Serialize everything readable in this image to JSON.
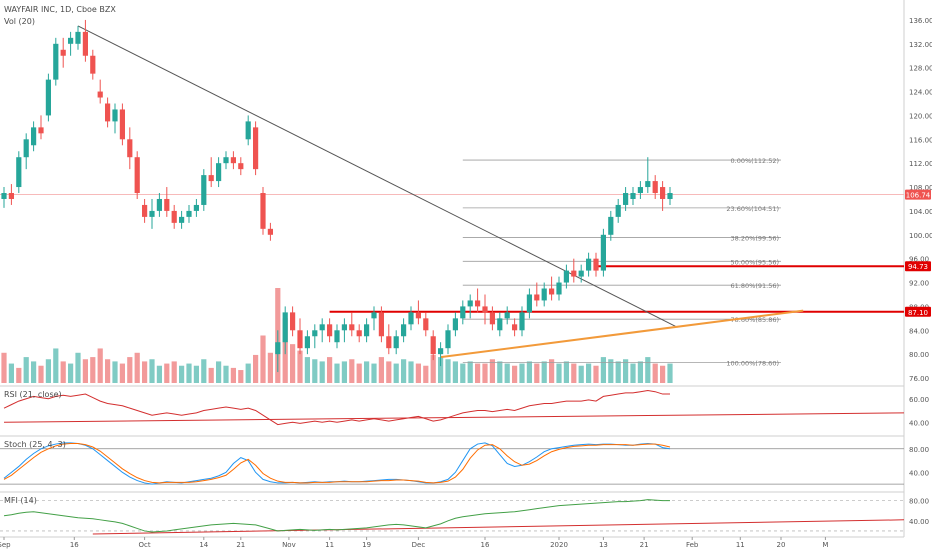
{
  "header": {
    "title": "WAYFAIR INC, 1D, Cboe BZX",
    "volume_label": "Vol (20)"
  },
  "colors": {
    "up": "#26a69a",
    "down": "#ef5350",
    "vol_up": "#80cbc4",
    "vol_down": "#f29a9a",
    "trendline": "#555555",
    "support_line": "#f29a3a",
    "level_line": "#e00000",
    "rsi": "#d32f2f",
    "stoch_k": "#2196f3",
    "stoch_d": "#ff6d00",
    "mfi": "#43a047",
    "fib": "#9e9e9e",
    "price_line": "#f6b0b0"
  },
  "chart_data": {
    "type": "candlestick",
    "title": "WAYFAIR INC, 1D, Cboe BZX",
    "price_axis": {
      "ylim": [
        75,
        138
      ],
      "ticks": [
        "76.00",
        "80.00",
        "84.00",
        "88.00",
        "92.00",
        "96.00",
        "100.00",
        "104.00",
        "108.00",
        "112.00",
        "116.00",
        "120.00",
        "124.00",
        "128.00",
        "132.00",
        "136.00"
      ]
    },
    "x_ticks": [
      {
        "label": "Sep",
        "idx": 0
      },
      {
        "label": "16",
        "idx": 9.5
      },
      {
        "label": "Oct",
        "idx": 19
      },
      {
        "label": "14",
        "idx": 27
      },
      {
        "label": "21",
        "idx": 32
      },
      {
        "label": "Nov",
        "idx": 38.5
      },
      {
        "label": "11",
        "idx": 44
      },
      {
        "label": "19",
        "idx": 49
      },
      {
        "label": "Dec",
        "idx": 56
      },
      {
        "label": "16",
        "idx": 65
      },
      {
        "label": "2020",
        "idx": 75
      },
      {
        "label": "13",
        "idx": 81
      },
      {
        "label": "21",
        "idx": 86.5
      },
      {
        "label": "Feb",
        "idx": 93
      },
      {
        "label": "11",
        "idx": 99.5
      },
      {
        "label": "20",
        "idx": 105
      },
      {
        "label": "M",
        "idx": 111
      }
    ],
    "candles": [
      [
        106,
        108,
        104.5,
        107
      ],
      [
        107,
        108.5,
        105,
        106
      ],
      [
        108,
        114,
        107,
        113
      ],
      [
        113,
        117,
        111,
        116
      ],
      [
        115,
        119,
        114,
        118
      ],
      [
        118,
        120,
        116,
        117
      ],
      [
        120,
        127,
        119,
        126
      ],
      [
        126,
        133,
        125,
        132
      ],
      [
        131,
        133,
        128,
        130
      ],
      [
        132,
        134,
        130,
        133
      ],
      [
        132,
        135,
        131,
        134
      ],
      [
        134,
        136,
        129,
        130
      ],
      [
        130,
        131,
        126,
        127
      ],
      [
        124,
        126,
        122,
        123
      ],
      [
        122,
        123,
        118,
        119
      ],
      [
        119,
        122,
        117,
        121
      ],
      [
        121,
        122,
        115,
        116
      ],
      [
        116,
        118,
        111,
        113
      ],
      [
        113,
        114,
        106,
        107
      ],
      [
        105,
        106,
        102,
        103
      ],
      [
        103,
        106,
        101,
        104
      ],
      [
        104,
        107,
        103,
        106
      ],
      [
        106,
        108,
        103,
        104
      ],
      [
        104,
        105,
        101,
        102
      ],
      [
        102,
        104,
        101,
        103
      ],
      [
        103,
        105,
        102,
        104
      ],
      [
        104,
        106,
        103,
        105
      ],
      [
        105,
        111,
        104,
        110
      ],
      [
        110,
        113,
        108,
        109
      ],
      [
        109,
        113,
        108,
        112
      ],
      [
        112,
        114,
        111,
        113
      ],
      [
        113,
        114,
        111,
        112
      ],
      [
        112,
        113,
        110,
        111
      ],
      [
        116,
        120,
        115,
        119
      ],
      [
        118,
        119,
        110,
        111
      ],
      [
        107,
        108,
        100,
        101
      ],
      [
        101,
        102,
        99,
        100
      ],
      [
        80,
        84,
        77,
        82
      ],
      [
        82,
        88,
        80,
        87
      ],
      [
        87,
        88,
        83,
        84
      ],
      [
        84,
        86,
        80,
        81
      ],
      [
        81,
        84,
        80,
        83
      ],
      [
        83,
        85,
        81,
        84
      ],
      [
        84,
        86,
        82,
        85
      ],
      [
        85,
        86,
        82,
        83
      ],
      [
        82,
        85,
        81,
        84
      ],
      [
        84,
        86,
        82,
        85
      ],
      [
        85,
        87,
        83,
        84
      ],
      [
        84,
        85,
        82,
        83
      ],
      [
        83,
        86,
        82,
        85
      ],
      [
        86,
        88,
        84,
        87
      ],
      [
        87,
        88,
        82,
        83
      ],
      [
        83,
        85,
        80,
        81
      ],
      [
        81,
        84,
        80,
        83
      ],
      [
        83,
        86,
        82,
        85
      ],
      [
        85,
        88,
        84,
        87
      ],
      [
        87,
        89,
        85,
        86
      ],
      [
        86,
        87,
        83,
        84
      ],
      [
        83,
        84,
        79,
        80
      ],
      [
        80,
        82,
        78,
        81
      ],
      [
        81,
        85,
        80,
        84
      ],
      [
        84,
        87,
        83,
        86
      ],
      [
        86,
        89,
        85,
        88
      ],
      [
        88,
        90,
        86,
        89
      ],
      [
        89,
        91,
        87,
        88
      ],
      [
        88,
        90,
        85,
        87
      ],
      [
        87,
        88,
        84,
        85
      ],
      [
        84,
        87,
        83,
        86
      ],
      [
        86,
        88,
        85,
        87
      ],
      [
        85,
        86,
        83,
        84
      ],
      [
        84,
        88,
        83,
        87
      ],
      [
        87,
        91,
        86,
        90
      ],
      [
        90,
        92,
        88,
        89
      ],
      [
        89,
        92,
        88,
        91
      ],
      [
        91,
        93,
        89,
        90
      ],
      [
        90,
        93,
        89,
        92
      ],
      [
        92,
        95,
        91,
        94
      ],
      [
        94,
        96,
        92,
        93
      ],
      [
        93,
        95,
        92,
        94
      ],
      [
        94,
        97,
        93,
        96
      ],
      [
        96,
        97,
        93,
        94
      ],
      [
        94,
        101,
        93,
        100
      ],
      [
        100,
        104,
        99,
        103
      ],
      [
        103,
        106,
        102,
        105
      ],
      [
        105,
        108,
        104,
        107
      ],
      [
        106,
        108,
        105,
        107
      ],
      [
        107,
        109,
        106,
        108
      ],
      [
        108,
        113,
        107,
        109
      ],
      [
        109,
        110,
        106,
        107
      ],
      [
        108,
        109,
        104,
        106
      ],
      [
        106,
        108,
        105,
        107
      ]
    ],
    "volume": [
      [
        14,
        false
      ],
      [
        9,
        true
      ],
      [
        7,
        false
      ],
      [
        12,
        true
      ],
      [
        10,
        true
      ],
      [
        8,
        false
      ],
      [
        11,
        true
      ],
      [
        16,
        true
      ],
      [
        10,
        false
      ],
      [
        9,
        true
      ],
      [
        14,
        true
      ],
      [
        11,
        false
      ],
      [
        12,
        false
      ],
      [
        16,
        false
      ],
      [
        11,
        false
      ],
      [
        10,
        true
      ],
      [
        9,
        false
      ],
      [
        12,
        false
      ],
      [
        14,
        false
      ],
      [
        10,
        false
      ],
      [
        11,
        true
      ],
      [
        8,
        true
      ],
      [
        9,
        false
      ],
      [
        10,
        false
      ],
      [
        8,
        true
      ],
      [
        9,
        true
      ],
      [
        8,
        true
      ],
      [
        11,
        true
      ],
      [
        7,
        false
      ],
      [
        10,
        true
      ],
      [
        8,
        true
      ],
      [
        7,
        false
      ],
      [
        6,
        false
      ],
      [
        9,
        true
      ],
      [
        13,
        false
      ],
      [
        22,
        false
      ],
      [
        14,
        false
      ],
      [
        44,
        false
      ],
      [
        30,
        false
      ],
      [
        18,
        false
      ],
      [
        15,
        false
      ],
      [
        12,
        true
      ],
      [
        11,
        true
      ],
      [
        10,
        true
      ],
      [
        12,
        false
      ],
      [
        9,
        true
      ],
      [
        10,
        true
      ],
      [
        11,
        false
      ],
      [
        9,
        false
      ],
      [
        10,
        true
      ],
      [
        9,
        true
      ],
      [
        12,
        false
      ],
      [
        10,
        false
      ],
      [
        9,
        true
      ],
      [
        11,
        true
      ],
      [
        10,
        true
      ],
      [
        9,
        false
      ],
      [
        8,
        false
      ],
      [
        13,
        false
      ],
      [
        12,
        true
      ],
      [
        11,
        true
      ],
      [
        10,
        true
      ],
      [
        9,
        true
      ],
      [
        10,
        true
      ],
      [
        9,
        false
      ],
      [
        9,
        false
      ],
      [
        11,
        false
      ],
      [
        10,
        true
      ],
      [
        9,
        true
      ],
      [
        8,
        false
      ],
      [
        9,
        true
      ],
      [
        10,
        true
      ],
      [
        9,
        false
      ],
      [
        10,
        true
      ],
      [
        11,
        false
      ],
      [
        9,
        true
      ],
      [
        10,
        true
      ],
      [
        9,
        false
      ],
      [
        8,
        true
      ],
      [
        9,
        true
      ],
      [
        8,
        false
      ],
      [
        12,
        true
      ],
      [
        11,
        true
      ],
      [
        10,
        true
      ],
      [
        11,
        true
      ],
      [
        9,
        true
      ],
      [
        10,
        true
      ],
      [
        12,
        true
      ],
      [
        9,
        false
      ],
      [
        8,
        false
      ],
      [
        9,
        true
      ]
    ],
    "fib_levels": [
      {
        "label": "0.00%(112.52)",
        "price": 112.52
      },
      {
        "label": "23.60%(104.51)",
        "price": 104.51
      },
      {
        "label": "38.20%(99.56)",
        "price": 99.56
      },
      {
        "label": "50.00%(95.56)",
        "price": 95.56
      },
      {
        "label": "61.80%(91.56)",
        "price": 91.56
      },
      {
        "label": "78.60%(85.86)",
        "price": 85.86
      },
      {
        "label": "100.00%(78.60)",
        "price": 78.6
      }
    ],
    "price_markers": [
      {
        "label": "106.74",
        "price": 106.74,
        "color": "#ef5350"
      },
      {
        "label": "94.73",
        "price": 94.73,
        "color": "#e00000"
      },
      {
        "label": "87.10",
        "price": 87.1,
        "color": "#e00000"
      }
    ],
    "level_lines": [
      {
        "price": 94.73,
        "from_idx": 80,
        "to_idx": 108
      },
      {
        "price": 87.1,
        "from_idx": 44,
        "to_idx": 108
      }
    ],
    "trendline": {
      "from": [
        10,
        135
      ],
      "to": [
        91,
        84.5
      ]
    },
    "support_line": {
      "from": [
        59,
        79.5
      ],
      "to": [
        108,
        87.3
      ]
    },
    "rsi": {
      "label": "RSI (21, close)",
      "ticks": [
        "40.00",
        "60.00"
      ],
      "ylim": [
        30,
        70
      ],
      "values": [
        52,
        55,
        58,
        60,
        62,
        61,
        60,
        62,
        63,
        62,
        63,
        64,
        61,
        58,
        56,
        55,
        54,
        52,
        50,
        48,
        46,
        47,
        48,
        47,
        46,
        47,
        48,
        50,
        51,
        52,
        53,
        52,
        51,
        52,
        50,
        46,
        42,
        38,
        39,
        40,
        39,
        40,
        41,
        40,
        41,
        40,
        41,
        42,
        41,
        42,
        43,
        42,
        41,
        42,
        43,
        44,
        45,
        43,
        41,
        42,
        44,
        46,
        48,
        49,
        50,
        50,
        49,
        50,
        51,
        50,
        52,
        54,
        55,
        56,
        56,
        57,
        58,
        58,
        58,
        59,
        58,
        62,
        63,
        64,
        65,
        65,
        66,
        67,
        66,
        64,
        64
      ],
      "ref_line": {
        "from": [
          0,
          40
        ],
        "to": [
          108,
          48
        ]
      }
    },
    "stoch": {
      "label": "Stoch (25, 4, 3)",
      "ticks": [
        "40.00",
        "80.00"
      ],
      "ylim": [
        10,
        100
      ],
      "k": [
        30,
        40,
        50,
        62,
        72,
        80,
        85,
        88,
        90,
        90,
        89,
        86,
        80,
        70,
        60,
        50,
        40,
        32,
        26,
        22,
        20,
        22,
        24,
        23,
        22,
        24,
        26,
        28,
        30,
        34,
        40,
        55,
        65,
        60,
        40,
        28,
        24,
        22,
        22,
        23,
        22,
        23,
        24,
        23,
        24,
        24,
        25,
        24,
        24,
        25,
        26,
        27,
        28,
        28,
        27,
        26,
        24,
        22,
        22,
        24,
        28,
        40,
        60,
        80,
        88,
        90,
        85,
        70,
        55,
        50,
        52,
        58,
        66,
        75,
        80,
        82,
        84,
        86,
        87,
        88,
        87,
        88,
        88,
        87,
        86,
        86,
        88,
        89,
        88,
        82,
        80
      ],
      "d": [
        28,
        35,
        45,
        55,
        65,
        74,
        80,
        85,
        88,
        89,
        89,
        87,
        83,
        76,
        66,
        56,
        46,
        38,
        31,
        26,
        23,
        22,
        23,
        23,
        23,
        23,
        24,
        26,
        28,
        31,
        35,
        45,
        56,
        62,
        52,
        38,
        30,
        25,
        23,
        23,
        22,
        22,
        23,
        23,
        23,
        24,
        24,
        24,
        24,
        24,
        25,
        26,
        26,
        27,
        27,
        26,
        25,
        23,
        22,
        23,
        25,
        32,
        45,
        64,
        78,
        86,
        87,
        80,
        68,
        58,
        52,
        54,
        60,
        68,
        75,
        79,
        82,
        84,
        85,
        86,
        86,
        87,
        87,
        87,
        87,
        86,
        87,
        88,
        88,
        86,
        83
      ],
      "upper_band": 80,
      "lower_band": 20
    },
    "mfi": {
      "label": "MFI (14)",
      "ticks": [
        "40.00",
        "80.00"
      ],
      "ylim": [
        10,
        95
      ],
      "values": [
        50,
        52,
        55,
        57,
        58,
        56,
        54,
        52,
        50,
        48,
        46,
        45,
        44,
        42,
        40,
        38,
        35,
        30,
        25,
        20,
        18,
        19,
        20,
        22,
        24,
        26,
        28,
        30,
        32,
        33,
        34,
        35,
        34,
        33,
        32,
        28,
        24,
        20,
        21,
        22,
        23,
        22,
        21,
        22,
        23,
        22,
        23,
        24,
        25,
        26,
        28,
        30,
        32,
        33,
        32,
        30,
        28,
        26,
        30,
        34,
        40,
        45,
        48,
        50,
        52,
        54,
        55,
        56,
        57,
        58,
        60,
        62,
        64,
        66,
        68,
        70,
        71,
        72,
        73,
        74,
        75,
        76,
        77,
        78,
        78,
        79,
        80,
        82,
        81,
        80,
        80
      ],
      "ref_line": {
        "from": [
          12,
          14
        ],
        "to": [
          108,
          42
        ]
      }
    }
  }
}
